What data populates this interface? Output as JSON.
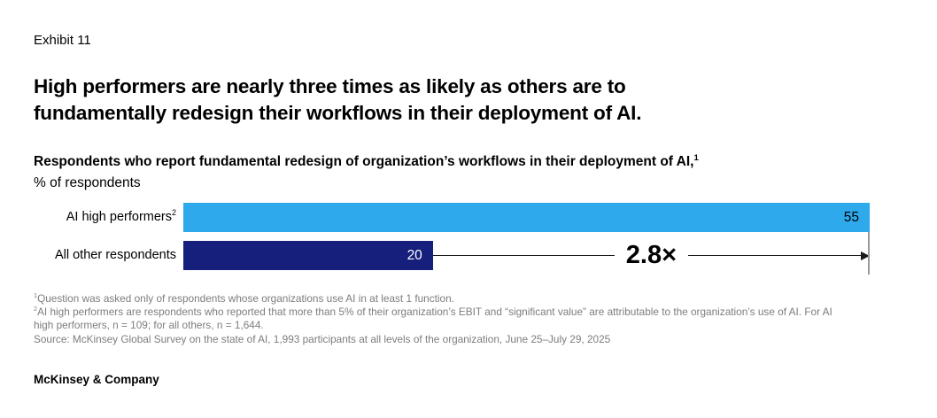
{
  "exhibit_label": "Exhibit 11",
  "title_lines": [
    "High performers are nearly three times as likely as others are to",
    "fundamentally redesign their workflows in their deployment of AI."
  ],
  "chart_data": {
    "type": "bar",
    "orientation": "horizontal",
    "title": "Respondents who report fundamental redesign of organization’s workflows in their deployment of AI,",
    "title_footnote_marker": "1",
    "unit_label": "% of respondents",
    "categories": [
      "AI high performers",
      "All other respondents"
    ],
    "category_footnote_markers": [
      "2",
      ""
    ],
    "values": [
      55,
      20
    ],
    "xlim": [
      0,
      55
    ],
    "grid": false,
    "legend": "none",
    "bar_colors": [
      "#2EA9EC",
      "#161F7C"
    ],
    "value_label_colors": [
      "#000000",
      "#FFFFFF"
    ],
    "annotation": {
      "label": "2.8×",
      "from_value": 20,
      "to_value": 55
    }
  },
  "footnotes": [
    {
      "marker": "1",
      "text": "Question was asked only of respondents whose organizations use AI in at least 1 function."
    },
    {
      "marker": "2",
      "text": "AI high performers are respondents who reported that more than 5% of their organization’s EBIT and “significant value” are attributable to the organization’s use of AI. For AI high performers, n = 109; for all others, n = 1,644."
    }
  ],
  "source_line": "Source: McKinsey Global Survey on the state of AI, 1,993 participants at all levels of the organization, June 25–July 29, 2025",
  "brand": "McKinsey & Company",
  "colors": {
    "bar_light_blue": "#2EA9EC",
    "bar_navy": "#161F7C",
    "footnote_gray": "#7D7D7D",
    "annotation_line": "#1A1A1A",
    "end_tick_gray": "#9B9B9B"
  }
}
